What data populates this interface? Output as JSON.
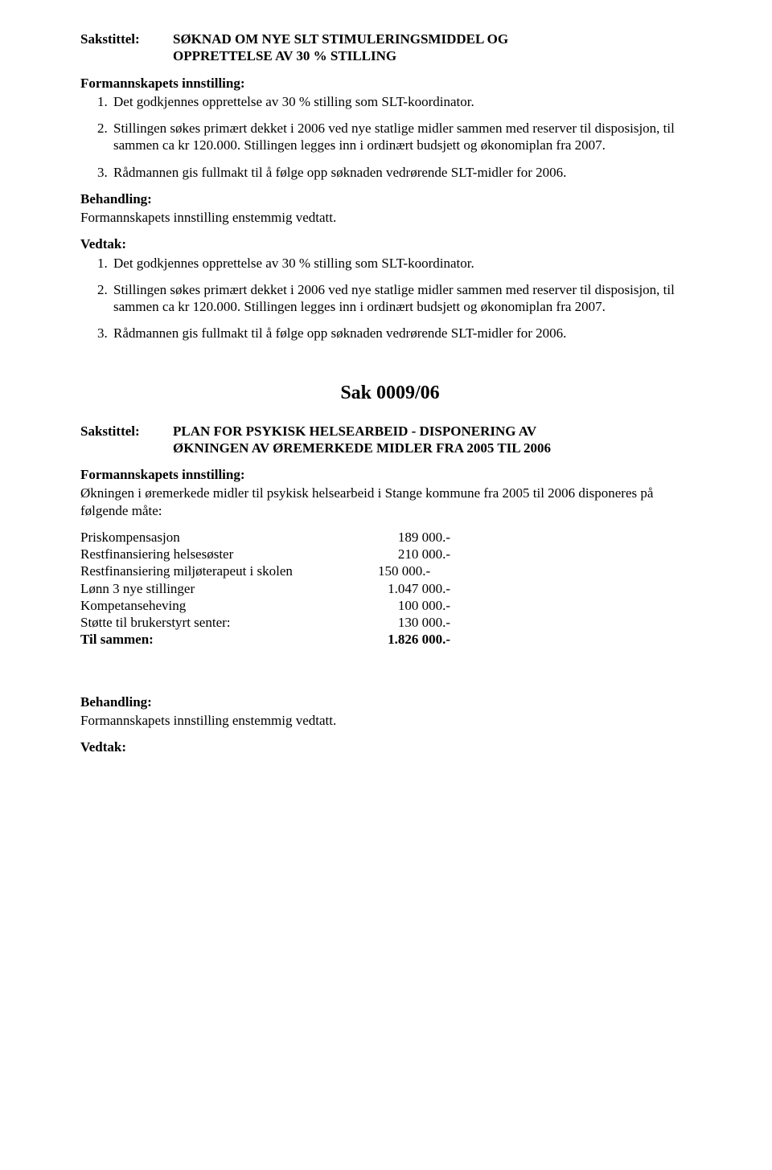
{
  "font_family": "Times New Roman",
  "text_color": "#000000",
  "background_color": "#ffffff",
  "sak1": {
    "label": "Sakstittel:",
    "title_line1": "SØKNAD OM NYE SLT STIMULERINGSMIDDEL OG",
    "title_line2": "OPPRETTELSE AV 30 % STILLING",
    "innstilling_heading": "Formannskapets innstilling:",
    "items": [
      "Det godkjennes opprettelse av 30 % stilling som SLT-koordinator.",
      "Stillingen søkes primært dekket i 2006 ved nye statlige midler sammen med reserver til disposisjon, til sammen ca kr 120.000. Stillingen legges inn i ordinært budsjett og økonomiplan fra 2007.",
      "Rådmannen gis fullmakt til å følge opp søknaden vedrørende SLT-midler for 2006."
    ],
    "behandling_heading": "Behandling:",
    "behandling_text": "Formannskapets innstilling enstemmig vedtatt.",
    "vedtak_heading": "Vedtak:",
    "vedtak_items": [
      "Det godkjennes opprettelse av 30 % stilling som SLT-koordinator.",
      "Stillingen søkes primært dekket i 2006 ved nye statlige midler sammen med reserver til disposisjon, til sammen ca kr 120.000. Stillingen legges inn i ordinært budsjett og økonomiplan fra 2007.",
      "Rådmannen gis fullmakt til å følge opp søknaden vedrørende SLT-midler for 2006."
    ]
  },
  "sak2": {
    "heading": "Sak  0009/06",
    "label": "Sakstittel:",
    "title_line1": "PLAN FOR PSYKISK HELSEARBEID - DISPONERING AV",
    "title_line2": "ØKNINGEN AV  ØREMERKEDE MIDLER FRA 2005 TIL 2006",
    "innstilling_heading": "Formannskapets innstilling:",
    "innstilling_text": "Økningen i øremerkede midler til psykisk helsearbeid i Stange kommune fra 2005 til 2006 disponeres på følgende måte:",
    "table": [
      {
        "label": "Priskompensasjon",
        "value": "189 000.-",
        "align": "right",
        "bold": false
      },
      {
        "label": "Restfinansiering helsesøster",
        "value": "210 000.-",
        "align": "right",
        "bold": false
      },
      {
        "label": "Restfinansiering miljøterapeut i skolen",
        "value": "150 000.-",
        "align": "left",
        "bold": false
      },
      {
        "label": "Lønn 3 nye stillinger",
        "value": "1.047 000.-",
        "align": "right",
        "bold": false
      },
      {
        "label": "Kompetanseheving",
        "value": "100 000.-",
        "align": "right",
        "bold": false
      },
      {
        "label": "Støtte til brukerstyrt senter:",
        "value": "130 000.-",
        "align": "right",
        "bold": false
      },
      {
        "label": "Til sammen:",
        "value": "1.826 000.-",
        "align": "right",
        "bold": true
      }
    ],
    "behandling_heading": "Behandling:",
    "behandling_text": "Formannskapets innstilling enstemmig vedtatt.",
    "vedtak_heading": "Vedtak:"
  }
}
